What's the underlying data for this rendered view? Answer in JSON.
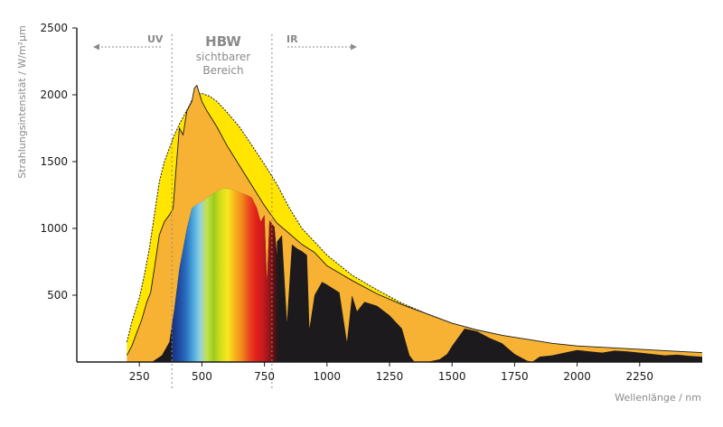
{
  "chart_data": {
    "type": "area",
    "ylabel": "Strahlungsintensität / W/m²µm",
    "xlabel": "Wellenlänge / nm",
    "xlim": [
      0,
      2500
    ],
    "ylim": [
      0,
      2500
    ],
    "x_ticks": [
      250,
      500,
      750,
      1000,
      1250,
      1500,
      1750,
      2000,
      2250
    ],
    "y_ticks": [
      500,
      1000,
      1500,
      2000,
      2500
    ],
    "grid": false,
    "colors": {
      "extraterrestrial": "#ffe500",
      "top_of_atmosphere": "#f7b233",
      "surface_ir": "#1c1a1d",
      "axis": "#1a1a1a",
      "annotation": "#8a8a8a"
    },
    "series": [
      {
        "x": [
          200,
          220,
          250,
          270,
          290,
          310,
          330,
          350,
          370,
          390,
          410,
          430,
          450,
          470,
          500,
          530,
          560,
          600,
          650,
          700,
          750,
          800,
          850,
          900,
          950,
          1000,
          1100,
          1200,
          1300,
          1400,
          1500,
          1600,
          1700,
          1800,
          1900,
          2000,
          2100,
          2200,
          2300,
          2400,
          2500
        ],
        "y": [
          150,
          300,
          480,
          650,
          850,
          1100,
          1350,
          1500,
          1600,
          1700,
          1780,
          1850,
          1920,
          2000,
          2010,
          1990,
          1950,
          1870,
          1760,
          1620,
          1480,
          1330,
          1150,
          1000,
          900,
          800,
          650,
          540,
          440,
          360,
          290,
          240,
          195,
          160,
          130,
          110,
          100,
          90,
          80,
          70,
          60
        ]
      },
      {
        "x": [
          200,
          220,
          240,
          260,
          280,
          295,
          310,
          330,
          350,
          370,
          385,
          395,
          410,
          425,
          440,
          460,
          470,
          480,
          500,
          520,
          540,
          560,
          600,
          650,
          700,
          750,
          800,
          850,
          900,
          950,
          1000,
          1100,
          1200,
          1300,
          1400,
          1500,
          1600,
          1700,
          1800,
          1900,
          2000,
          2100,
          2200,
          2300,
          2400,
          2500
        ],
        "y": [
          50,
          120,
          220,
          320,
          450,
          520,
          700,
          950,
          1050,
          1100,
          1150,
          1400,
          1750,
          1700,
          1880,
          1950,
          2050,
          2070,
          1950,
          1880,
          1820,
          1760,
          1620,
          1470,
          1320,
          1170,
          1040,
          960,
          880,
          820,
          720,
          610,
          510,
          430,
          360,
          290,
          240,
          200,
          170,
          140,
          120,
          110,
          100,
          90,
          80,
          70
        ]
      },
      {
        "x": [
          300,
          340,
          370,
          390,
          410,
          440,
          460,
          480,
          500,
          530,
          560,
          590,
          620,
          650,
          680,
          700,
          720,
          735,
          750,
          760,
          770,
          790,
          800
        ],
        "y": [
          0,
          50,
          150,
          400,
          700,
          1000,
          1150,
          1180,
          1200,
          1240,
          1280,
          1300,
          1290,
          1270,
          1250,
          1230,
          1150,
          1050,
          1100,
          600,
          1060,
          1010,
          800
        ]
      },
      {
        "x": [
          800,
          820,
          840,
          860,
          880,
          900,
          920,
          930,
          950,
          980,
          1000,
          1050,
          1080,
          1100,
          1120,
          1150,
          1200,
          1250,
          1300,
          1330,
          1350,
          1400,
          1450,
          1480,
          1500,
          1550,
          1600,
          1650,
          1700,
          1750,
          1800,
          1820,
          1850,
          1900,
          1950,
          2000,
          2050,
          2100,
          2150,
          2200,
          2250,
          2300,
          2350,
          2400,
          2450,
          2500
        ],
        "y": [
          900,
          950,
          300,
          880,
          850,
          830,
          800,
          250,
          500,
          600,
          580,
          520,
          150,
          500,
          380,
          450,
          420,
          350,
          250,
          50,
          0,
          0,
          20,
          60,
          120,
          250,
          230,
          180,
          140,
          60,
          10,
          0,
          40,
          50,
          70,
          90,
          80,
          70,
          85,
          80,
          70,
          60,
          50,
          55,
          45,
          40
        ]
      }
    ],
    "annotations": {
      "uv_label": "UV",
      "ir_label": "IR",
      "visible_title": "HBW",
      "visible_line1": "sichtbarer",
      "visible_line2": "Bereich",
      "uv_boundary_x": 380,
      "ir_boundary_x": 780
    },
    "visible_spectrum_x": [
      380,
      800
    ],
    "visible_spectrum_colors": [
      "#1b2f7a",
      "#1e4aa0",
      "#2a6dbf",
      "#49a7d9",
      "#8fd0e6",
      "#c4e24a",
      "#9ecb1f",
      "#d4df17",
      "#f7e81f",
      "#f7b31b",
      "#f08a1b",
      "#e94b1d",
      "#e3201c",
      "#c8191c",
      "#8f1418",
      "#3a0e10"
    ]
  }
}
